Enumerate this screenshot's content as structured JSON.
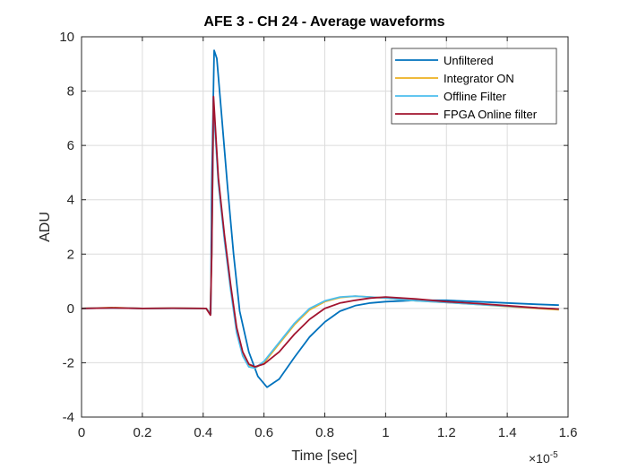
{
  "chart_data": {
    "type": "line",
    "title": "AFE 3 - CH 24 - Average waveforms",
    "xlabel": "Time [sec]",
    "ylabel": "ADU",
    "x_exponent_label": "×10",
    "x_exponent_power": "-5",
    "x_scale_factor": 1e-05,
    "xlim": [
      0,
      1.6
    ],
    "ylim": [
      -4,
      10
    ],
    "x_ticks": [
      0,
      0.2,
      0.4,
      0.6,
      0.8,
      1,
      1.2,
      1.4,
      1.6
    ],
    "x_tick_labels": [
      "0",
      "0.2",
      "0.4",
      "0.6",
      "0.8",
      "1",
      "1.2",
      "1.4",
      "1.6"
    ],
    "y_ticks": [
      -4,
      -2,
      0,
      2,
      4,
      6,
      8,
      10
    ],
    "y_tick_labels": [
      "-4",
      "-2",
      "0",
      "2",
      "4",
      "6",
      "8",
      "10"
    ],
    "grid": true,
    "legend_position": "top-right",
    "series": [
      {
        "name": "Unfiltered",
        "color": "#0072BD",
        "x": [
          0,
          0.1,
          0.2,
          0.3,
          0.41,
          0.425,
          0.428,
          0.436,
          0.445,
          0.46,
          0.48,
          0.5,
          0.52,
          0.55,
          0.58,
          0.61,
          0.65,
          0.7,
          0.75,
          0.8,
          0.85,
          0.9,
          0.95,
          1.0,
          1.1,
          1.2,
          1.3,
          1.4,
          1.5,
          1.57
        ],
        "y": [
          0.0,
          0.02,
          0.0,
          0.01,
          0.0,
          -0.2,
          4.5,
          9.5,
          9.2,
          7.2,
          4.5,
          2.0,
          -0.1,
          -1.6,
          -2.5,
          -2.9,
          -2.6,
          -1.8,
          -1.05,
          -0.5,
          -0.1,
          0.1,
          0.2,
          0.25,
          0.3,
          0.3,
          0.25,
          0.2,
          0.15,
          0.12
        ]
      },
      {
        "name": "Integrator ON",
        "color": "#EDB120",
        "x": [
          0,
          0.1,
          0.2,
          0.3,
          0.41,
          0.423,
          0.428,
          0.434,
          0.44,
          0.45,
          0.47,
          0.49,
          0.51,
          0.53,
          0.55,
          0.57,
          0.6,
          0.65,
          0.7,
          0.75,
          0.8,
          0.85,
          0.9,
          0.95,
          1.0,
          1.1,
          1.2,
          1.3,
          1.4,
          1.5,
          1.57
        ],
        "y": [
          0.0,
          0.03,
          0.0,
          0.01,
          0.0,
          -0.2,
          2.0,
          7.6,
          6.5,
          4.7,
          2.6,
          0.8,
          -0.8,
          -1.7,
          -2.1,
          -2.2,
          -2.0,
          -1.3,
          -0.6,
          -0.05,
          0.25,
          0.4,
          0.45,
          0.42,
          0.38,
          0.28,
          0.22,
          0.15,
          0.07,
          0.0,
          -0.05
        ]
      },
      {
        "name": "Offline Filter",
        "color": "#4DBEEE",
        "x": [
          0,
          0.1,
          0.2,
          0.3,
          0.41,
          0.423,
          0.428,
          0.434,
          0.44,
          0.45,
          0.47,
          0.49,
          0.51,
          0.53,
          0.55,
          0.57,
          0.6,
          0.65,
          0.7,
          0.75,
          0.8,
          0.85,
          0.9,
          0.95,
          1.0,
          1.1,
          1.2,
          1.3,
          1.4,
          1.5,
          1.57
        ],
        "y": [
          0.0,
          0.02,
          0.0,
          0.0,
          0.0,
          -0.2,
          2.0,
          7.4,
          6.4,
          4.6,
          2.5,
          0.7,
          -0.9,
          -1.75,
          -2.15,
          -2.2,
          -1.95,
          -1.25,
          -0.55,
          0.0,
          0.28,
          0.42,
          0.45,
          0.42,
          0.38,
          0.28,
          0.22,
          0.15,
          0.08,
          0.02,
          -0.02
        ]
      },
      {
        "name": "FPGA Online filter",
        "color": "#A2142F",
        "x": [
          0,
          0.1,
          0.2,
          0.3,
          0.41,
          0.424,
          0.428,
          0.434,
          0.44,
          0.45,
          0.47,
          0.49,
          0.51,
          0.53,
          0.55,
          0.57,
          0.6,
          0.65,
          0.7,
          0.75,
          0.8,
          0.85,
          0.9,
          0.95,
          1.0,
          1.1,
          1.2,
          1.3,
          1.4,
          1.5,
          1.57
        ],
        "y": [
          0.0,
          0.02,
          0.0,
          0.01,
          0.0,
          -0.25,
          2.0,
          7.8,
          6.7,
          4.8,
          2.7,
          0.9,
          -0.7,
          -1.6,
          -2.05,
          -2.15,
          -2.05,
          -1.6,
          -0.95,
          -0.4,
          0.0,
          0.2,
          0.3,
          0.38,
          0.42,
          0.35,
          0.25,
          0.18,
          0.1,
          0.02,
          -0.02
        ]
      }
    ]
  }
}
